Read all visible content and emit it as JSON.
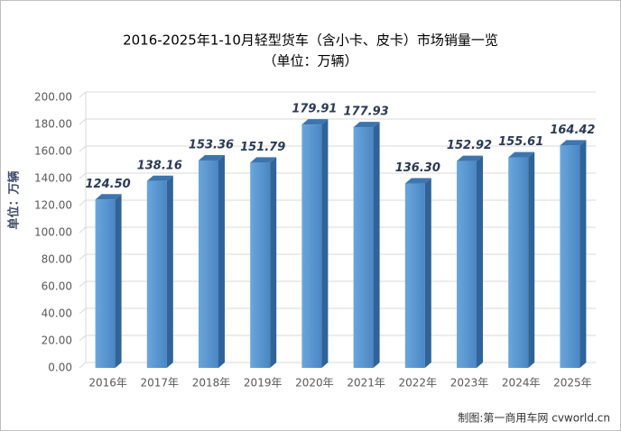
{
  "chart_data": {
    "type": "bar3d",
    "title": "2016-2025年1-10月轻型货车（含小卡、皮卡）市场销量一览",
    "subtitle": "（单位：万辆）",
    "y_label": "单位：万辆",
    "footer": "制图:第一商用车网 cvworld.cn",
    "categories": [
      "2016年",
      "2017年",
      "2018年",
      "2019年",
      "2020年",
      "2021年",
      "2022年",
      "2023年",
      "2024年",
      "2025年"
    ],
    "values": [
      124.5,
      138.16,
      153.36,
      151.79,
      179.91,
      177.93,
      136.3,
      152.92,
      155.61,
      164.42
    ],
    "value_labels": [
      "124.50",
      "138.16",
      "153.36",
      "151.79",
      "179.91",
      "177.93",
      "136.30",
      "152.92",
      "155.61",
      "164.42"
    ],
    "color": "#5b9bd5",
    "ylim": [
      0,
      200
    ],
    "yticks": [
      {
        "value": 0,
        "label": "0.00"
      },
      {
        "value": 20,
        "label": "20.00"
      },
      {
        "value": 40,
        "label": "40.00"
      },
      {
        "value": 60,
        "label": "60.00"
      },
      {
        "value": 80,
        "label": "80.00"
      },
      {
        "value": 100,
        "label": "100.00"
      },
      {
        "value": 120,
        "label": "120.00"
      },
      {
        "value": 140,
        "label": "140.00"
      },
      {
        "value": 160,
        "label": "160.00"
      },
      {
        "value": 180,
        "label": "180.00"
      },
      {
        "value": 200,
        "label": "200.00"
      }
    ],
    "grid": true
  }
}
